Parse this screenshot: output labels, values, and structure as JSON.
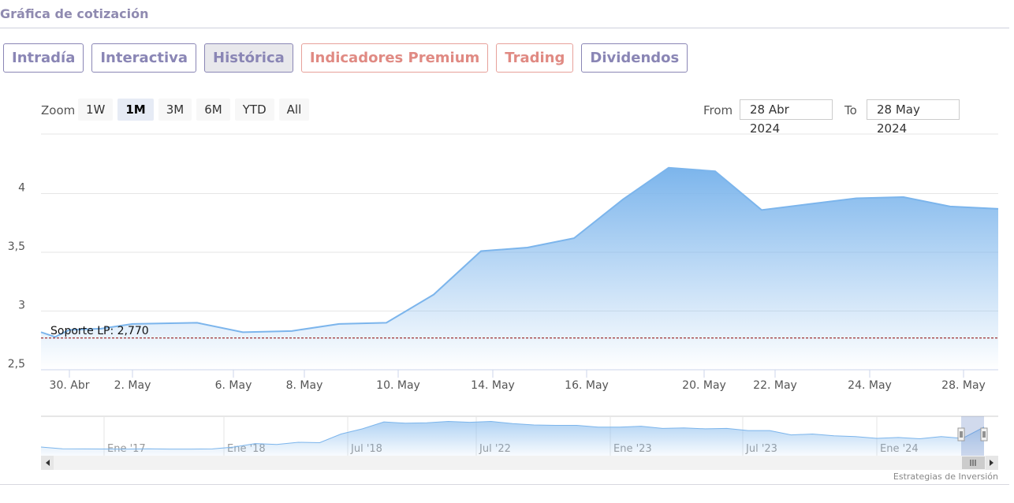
{
  "page": {
    "title": "Gráfica de cotización"
  },
  "tabs": [
    {
      "label": "Intradía",
      "style": "normal"
    },
    {
      "label": "Interactiva",
      "style": "normal"
    },
    {
      "label": "Histórica",
      "style": "active"
    },
    {
      "label": "Indicadores Premium",
      "style": "premium"
    },
    {
      "label": "Trading",
      "style": "premium"
    },
    {
      "label": "Dividendos",
      "style": "normal"
    }
  ],
  "zoom": {
    "label": "Zoom",
    "buttons": [
      "1W",
      "1M",
      "3M",
      "6M",
      "YTD",
      "All"
    ],
    "selected": "1M"
  },
  "range": {
    "from_label": "From",
    "from_value": "28 Abr 2024",
    "to_label": "To",
    "to_value": "28 May 2024"
  },
  "colors": {
    "series": "#7cb5ec",
    "support_line": "#8b0000",
    "tab_accent": "#8a86b5",
    "premium_accent": "#e08a83"
  },
  "chart_data": {
    "type": "area",
    "title": "",
    "xlabel": "",
    "ylabel": "",
    "ylim": [
      2.5,
      4.3
    ],
    "y_ticks": [
      {
        "value": 4,
        "label": "4"
      },
      {
        "value": 3.5,
        "label": "3,5"
      },
      {
        "value": 3,
        "label": "3"
      },
      {
        "value": 2.5,
        "label": "2,5"
      }
    ],
    "x_ticks": [
      "30. Abr",
      "2. May",
      "6. May",
      "8. May",
      "10. May",
      "14. May",
      "16. May",
      "20. May",
      "22. May",
      "24. May",
      "28. May"
    ],
    "series": [
      {
        "x": [
          "28 Abr",
          "29 Abr",
          "30 Abr",
          "1 May",
          "2 May",
          "3 May",
          "6 May",
          "7 May",
          "8 May",
          "9 May",
          "10 May",
          "13 May",
          "14 May",
          "15 May",
          "16 May",
          "17 May",
          "20 May",
          "21 May",
          "22 May",
          "23 May",
          "24 May",
          "27 May",
          "28 May"
        ],
        "values": [
          2.82,
          2.78,
          2.84,
          2.85,
          2.89,
          2.9,
          2.82,
          2.83,
          2.89,
          2.9,
          3.14,
          3.51,
          3.54,
          3.62,
          3.95,
          4.22,
          4.19,
          3.86,
          3.91,
          3.96,
          3.97,
          3.89,
          3.87
        ]
      }
    ],
    "annotations": [
      {
        "type": "horizontal-line",
        "value": 2.77,
        "label": "Soporte LP: 2,770",
        "style": "dashed"
      }
    ],
    "navigator": {
      "labels": [
        "Ene '17",
        "Ene '18",
        "Jul '18",
        "Jul '22",
        "Ene '23",
        "Jul '23",
        "Ene '24"
      ],
      "series_values": [
        1.0,
        0.8,
        0.78,
        0.77,
        0.76,
        0.8,
        0.76,
        0.76,
        0.78,
        1.0,
        1.4,
        1.3,
        1.55,
        1.5,
        2.5,
        3.1,
        3.9,
        3.75,
        3.8,
        3.95,
        3.85,
        3.95,
        3.7,
        3.55,
        3.5,
        3.5,
        3.3,
        3.3,
        3.4,
        3.15,
        3.2,
        3.1,
        3.15,
        2.9,
        2.9,
        2.4,
        2.5,
        2.3,
        2.2,
        2.0,
        2.1,
        1.95,
        2.2,
        2.0,
        3.3
      ]
    },
    "legend": "none",
    "grid": true
  },
  "credits": "Estrategias de Inversión"
}
